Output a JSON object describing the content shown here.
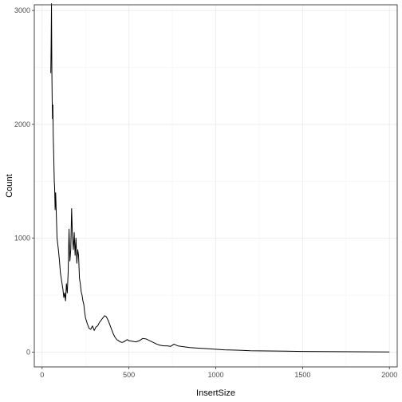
{
  "chart_data": {
    "type": "line",
    "title": "",
    "xlabel": "InsertSize",
    "ylabel": "Count",
    "xlim": [
      -45,
      2045
    ],
    "ylim": [
      -130,
      3050
    ],
    "xticks": [
      0,
      500,
      1000,
      1500,
      2000
    ],
    "xtick_labels": [
      "0",
      "500",
      "1000",
      "1500",
      "2000"
    ],
    "yticks": [
      0,
      1000,
      2000,
      3000
    ],
    "ytick_labels": [
      "0",
      "1000",
      "2000",
      "3000"
    ],
    "grid": true,
    "legend": "none",
    "series": [
      {
        "color": "#000000",
        "x": [
          50,
          52,
          54,
          56,
          58,
          60,
          62,
          64,
          66,
          68,
          70,
          72,
          75,
          78,
          82,
          86,
          90,
          95,
          100,
          105,
          110,
          115,
          120,
          125,
          130,
          135,
          140,
          145,
          150,
          155,
          160,
          165,
          170,
          175,
          180,
          185,
          190,
          195,
          200,
          205,
          210,
          215,
          220,
          225,
          230,
          235,
          240,
          245,
          250,
          260,
          270,
          280,
          290,
          300,
          310,
          320,
          330,
          340,
          350,
          360,
          370,
          380,
          390,
          400,
          410,
          420,
          430,
          440,
          450,
          460,
          470,
          480,
          490,
          500,
          520,
          540,
          560,
          580,
          600,
          620,
          640,
          660,
          680,
          700,
          720,
          740,
          760,
          780,
          800,
          850,
          900,
          950,
          1000,
          1050,
          1100,
          1150,
          1200,
          1300,
          1400,
          1500,
          1600,
          1700,
          1800,
          1900,
          2000
        ],
        "y": [
          2450,
          2700,
          3060,
          2500,
          2200,
          2050,
          2170,
          1900,
          1780,
          1650,
          1500,
          1450,
          1250,
          1400,
          1200,
          1000,
          950,
          880,
          800,
          700,
          650,
          600,
          550,
          480,
          520,
          450,
          600,
          520,
          700,
          1080,
          800,
          900,
          1260,
          1000,
          900,
          1050,
          850,
          1000,
          780,
          900,
          850,
          650,
          600,
          530,
          500,
          450,
          420,
          350,
          300,
          250,
          210,
          200,
          230,
          190,
          220,
          230,
          260,
          280,
          300,
          320,
          310,
          280,
          240,
          200,
          160,
          130,
          110,
          100,
          90,
          85,
          90,
          100,
          110,
          100,
          95,
          90,
          100,
          120,
          115,
          100,
          85,
          70,
          60,
          55,
          55,
          50,
          70,
          55,
          50,
          40,
          35,
          30,
          25,
          20,
          18,
          15,
          12,
          10,
          8,
          6,
          5,
          4,
          3,
          2,
          1
        ]
      }
    ]
  }
}
